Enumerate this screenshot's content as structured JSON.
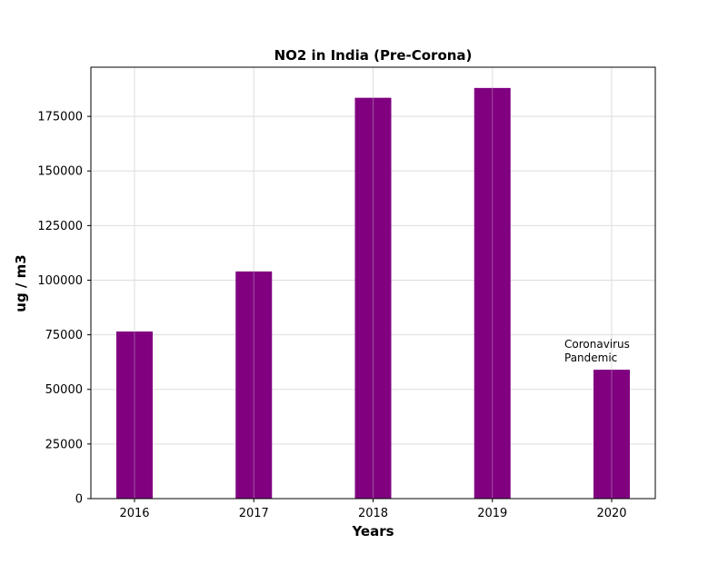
{
  "chart_data": {
    "type": "bar",
    "title": "NO2 in India (Pre-Corona)",
    "xlabel": "Years",
    "ylabel": "ug / m3",
    "categories": [
      "2016",
      "2017",
      "2018",
      "2019",
      "2020"
    ],
    "values": [
      76500,
      104000,
      183500,
      188000,
      59000
    ],
    "ylim": [
      0,
      197500
    ],
    "yticks": [
      0,
      25000,
      50000,
      75000,
      100000,
      125000,
      150000,
      175000
    ],
    "bar_color": "#800080",
    "grid": true,
    "annotations": [
      {
        "category": "2020",
        "lines": [
          "Coronavirus",
          "Pandemic"
        ]
      }
    ]
  }
}
